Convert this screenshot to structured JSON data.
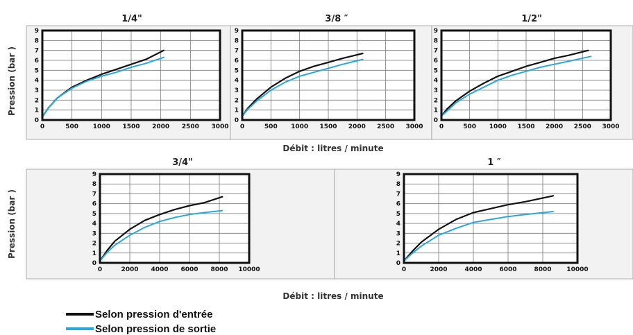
{
  "colors": {
    "inlet": "#111111",
    "outlet": "#2aa7d8"
  },
  "legend": [
    {
      "label": "Selon pression d'entrée",
      "color": "#111111"
    },
    {
      "label": "Selon pression de sortie",
      "color": "#2aa7d8"
    }
  ],
  "ylabel": "Pression  (bar )",
  "xlabel": "Débit : litres / minute",
  "chart_data": [
    {
      "type": "line",
      "title": "1/4\"",
      "xlim": [
        0,
        3000
      ],
      "ylim": [
        0,
        9
      ],
      "xticks": [
        0,
        500,
        1000,
        1500,
        2000,
        2500,
        3000
      ],
      "yticks": [
        0,
        1,
        2,
        3,
        4,
        5,
        6,
        7,
        8,
        9
      ],
      "series": [
        {
          "name": "Selon pression d'entrée",
          "x": [
            0,
            100,
            250,
            500,
            750,
            1000,
            1250,
            1500,
            1750,
            2050
          ],
          "y": [
            0.3,
            1.2,
            2.2,
            3.3,
            4.0,
            4.6,
            5.1,
            5.6,
            6.1,
            7.0
          ]
        },
        {
          "name": "Selon pression de sortie",
          "x": [
            0,
            100,
            250,
            500,
            750,
            1000,
            1250,
            1500,
            1750,
            2050
          ],
          "y": [
            0.3,
            1.2,
            2.2,
            3.2,
            3.9,
            4.4,
            4.8,
            5.3,
            5.7,
            6.3
          ]
        }
      ]
    },
    {
      "type": "line",
      "title": "3/8 ″",
      "xlim": [
        0,
        3000
      ],
      "ylim": [
        0,
        9
      ],
      "xticks": [
        0,
        500,
        1000,
        1500,
        2000,
        2500,
        3000
      ],
      "yticks": [
        0,
        1,
        2,
        3,
        4,
        5,
        6,
        7,
        8,
        9
      ],
      "series": [
        {
          "name": "Selon pression d'entrée",
          "x": [
            0,
            100,
            250,
            500,
            750,
            1000,
            1250,
            1500,
            1750,
            2100
          ],
          "y": [
            0.4,
            1.2,
            2.1,
            3.3,
            4.2,
            4.9,
            5.4,
            5.8,
            6.2,
            6.7
          ]
        },
        {
          "name": "Selon pression de sortie",
          "x": [
            0,
            100,
            250,
            500,
            750,
            1000,
            1250,
            1500,
            1750,
            2100
          ],
          "y": [
            0.4,
            1.1,
            1.9,
            3.0,
            3.8,
            4.4,
            4.8,
            5.2,
            5.6,
            6.1
          ]
        }
      ]
    },
    {
      "type": "line",
      "title": "1/2\"",
      "xlim": [
        0,
        3000
      ],
      "ylim": [
        0,
        9
      ],
      "xticks": [
        0,
        500,
        1000,
        1500,
        2000,
        2500,
        3000
      ],
      "yticks": [
        0,
        1,
        2,
        3,
        4,
        5,
        6,
        7,
        8,
        9
      ],
      "series": [
        {
          "name": "Selon pression d'entrée",
          "x": [
            0,
            100,
            250,
            500,
            750,
            1000,
            1250,
            1500,
            1750,
            2000,
            2250,
            2600
          ],
          "y": [
            0.4,
            1.1,
            1.9,
            2.9,
            3.7,
            4.4,
            4.9,
            5.4,
            5.8,
            6.2,
            6.5,
            7.0
          ]
        },
        {
          "name": "Selon pression de sortie",
          "x": [
            0,
            100,
            250,
            500,
            750,
            1000,
            1250,
            1500,
            1750,
            2000,
            2250,
            2650
          ],
          "y": [
            0.4,
            0.9,
            1.7,
            2.6,
            3.3,
            4.0,
            4.5,
            4.9,
            5.3,
            5.6,
            5.9,
            6.4
          ]
        }
      ]
    },
    {
      "type": "line",
      "title": "3/4\"",
      "xlim": [
        0,
        10000
      ],
      "ylim": [
        0,
        9
      ],
      "xticks": [
        0,
        2000,
        4000,
        6000,
        8000,
        10000
      ],
      "yticks": [
        0,
        1,
        2,
        3,
        4,
        5,
        6,
        7,
        8,
        9
      ],
      "series": [
        {
          "name": "Selon pression d'entrée",
          "x": [
            0,
            500,
            1000,
            2000,
            3000,
            4000,
            5000,
            6000,
            7000,
            8200
          ],
          "y": [
            0.2,
            1.3,
            2.2,
            3.4,
            4.3,
            4.9,
            5.4,
            5.8,
            6.1,
            6.7
          ]
        },
        {
          "name": "Selon pression de sortie",
          "x": [
            0,
            500,
            1000,
            2000,
            3000,
            4000,
            5000,
            6000,
            7000,
            8200
          ],
          "y": [
            0.2,
            1.1,
            1.8,
            2.8,
            3.6,
            4.2,
            4.6,
            4.9,
            5.1,
            5.3
          ]
        }
      ]
    },
    {
      "type": "line",
      "title": "1 ″",
      "xlim": [
        0,
        10000
      ],
      "ylim": [
        0,
        9
      ],
      "xticks": [
        0,
        2000,
        4000,
        6000,
        8000,
        10000
      ],
      "yticks": [
        0,
        1,
        2,
        3,
        4,
        5,
        6,
        7,
        8,
        9
      ],
      "series": [
        {
          "name": "Selon pression d'entrée",
          "x": [
            0,
            500,
            1000,
            2000,
            3000,
            4000,
            5000,
            6000,
            7000,
            8600
          ],
          "y": [
            0.2,
            1.2,
            2.1,
            3.4,
            4.4,
            5.1,
            5.5,
            5.9,
            6.2,
            6.8
          ]
        },
        {
          "name": "Selon pression de sortie",
          "x": [
            0,
            500,
            1000,
            2000,
            3000,
            4000,
            5000,
            6000,
            7000,
            8600
          ],
          "y": [
            0.2,
            1.0,
            1.7,
            2.8,
            3.5,
            4.1,
            4.4,
            4.7,
            4.9,
            5.2
          ]
        }
      ]
    }
  ]
}
